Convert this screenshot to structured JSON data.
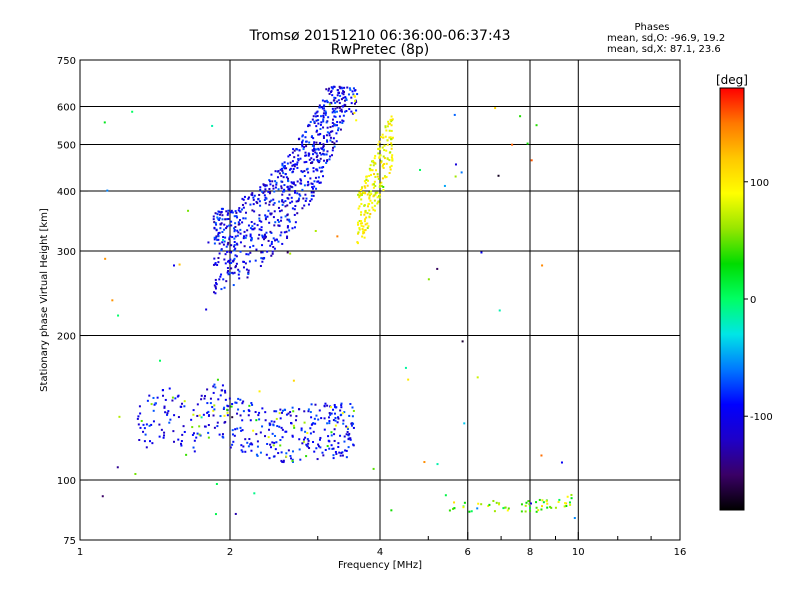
{
  "title_line1": "Tromsø 20151210 06:36:00-06:37:43",
  "title_line2": "RwPretec (8p)",
  "stats": {
    "heading": "Phases",
    "line_o": "mean, sd,O: -96.9, 19.2",
    "line_x": "mean, sd,X:  87.1, 23.6"
  },
  "chart_data": {
    "type": "scatter",
    "xlabel": "Frequency [MHz]",
    "ylabel": "Stationary phase Virtual Height [km]",
    "x_scale": "log",
    "y_scale": "log",
    "xlim": [
      1,
      16
    ],
    "ylim": [
      75,
      750
    ],
    "x_ticks": [
      1,
      2,
      4,
      6,
      8,
      10,
      16
    ],
    "x_tick_labels": [
      "1",
      "2",
      "4",
      "6",
      "8",
      "10",
      "16"
    ],
    "y_ticks": [
      75,
      100,
      200,
      300,
      400,
      500,
      600,
      750
    ],
    "y_tick_labels": [
      "75",
      "100",
      "200",
      "300",
      "400",
      "500",
      "600",
      "750"
    ],
    "grid_x": [
      2,
      4,
      6,
      8,
      10
    ],
    "grid_y": [
      100,
      200,
      300,
      400,
      500,
      600
    ],
    "grid": true,
    "colorbar": {
      "label": "[deg]",
      "range": [
        -180,
        180
      ],
      "ticks": [
        100,
        0,
        -100
      ],
      "tick_labels": [
        "100",
        "0",
        "-100"
      ],
      "colors": [
        "#000000",
        "#3a0066",
        "#1e00c8",
        "#0000ff",
        "#0078ff",
        "#00e6e6",
        "#00ff64",
        "#00dc00",
        "#96e600",
        "#ffff00",
        "#ffc800",
        "#ff7800",
        "#ff0000"
      ]
    },
    "series": [
      {
        "values_desc": "F-region O-mode trace",
        "points": [
          [
            1.85,
            265
          ],
          [
            1.95,
            270
          ],
          [
            2.0,
            275
          ],
          [
            2.1,
            280
          ],
          [
            2.2,
            290
          ],
          [
            2.3,
            300
          ],
          [
            2.4,
            315
          ],
          [
            2.5,
            330
          ],
          [
            2.6,
            345
          ],
          [
            2.7,
            365
          ],
          [
            2.8,
            385
          ],
          [
            2.9,
            410
          ],
          [
            3.0,
            440
          ],
          [
            3.1,
            470
          ],
          [
            3.2,
            510
          ],
          [
            3.3,
            560
          ],
          [
            3.4,
            610
          ],
          [
            3.6,
            640
          ]
        ],
        "phase_deg": -100
      },
      {
        "values_desc": "F-region X-mode trace",
        "points": [
          [
            3.6,
            330
          ],
          [
            3.7,
            345
          ],
          [
            3.8,
            370
          ],
          [
            3.9,
            400
          ],
          [
            4.0,
            430
          ],
          [
            4.2,
            480
          ],
          [
            4.4,
            520
          ],
          [
            4.6,
            560
          ],
          [
            4.8,
            600
          ]
        ],
        "phase_deg": 90
      },
      {
        "values_desc": "E-region sporadic echoes",
        "points": [
          [
            1.3,
            130
          ],
          [
            1.4,
            135
          ],
          [
            1.5,
            140
          ],
          [
            1.6,
            135
          ],
          [
            1.7,
            130
          ],
          [
            1.8,
            140
          ],
          [
            1.9,
            145
          ],
          [
            2.0,
            135
          ],
          [
            2.2,
            130
          ],
          [
            2.5,
            125
          ],
          [
            2.8,
            128
          ],
          [
            3.0,
            130
          ],
          [
            3.2,
            128
          ],
          [
            3.5,
            130
          ]
        ],
        "phase_deg": -95
      },
      {
        "values_desc": "Low echoes near 90 km",
        "points": [
          [
            5.5,
            87
          ],
          [
            6.0,
            88
          ],
          [
            6.5,
            88
          ],
          [
            7.0,
            89
          ],
          [
            7.5,
            88
          ],
          [
            8.0,
            88
          ],
          [
            8.5,
            89
          ],
          [
            9.0,
            90
          ],
          [
            9.5,
            91
          ]
        ],
        "phase_deg": 60
      }
    ]
  }
}
